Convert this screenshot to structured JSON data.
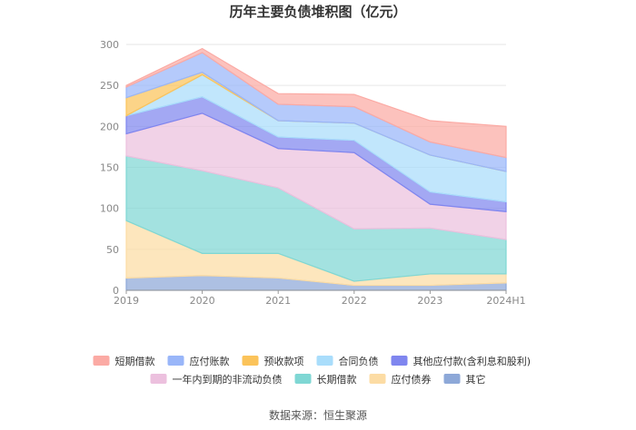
{
  "chart_data": {
    "type": "area",
    "stacked": true,
    "title": "历年主要负债堆积图（亿元）",
    "categories": [
      "2019",
      "2020",
      "2021",
      "2022",
      "2023",
      "2024H1"
    ],
    "ylim": [
      0,
      300
    ],
    "yticks": [
      0,
      50,
      100,
      150,
      200,
      250,
      300
    ],
    "grid": true,
    "legend_position": "bottom",
    "source": "数据来源：恒生聚源",
    "series": [
      {
        "name": "其它",
        "color": "#8da8d8",
        "values": [
          15,
          18,
          15,
          6,
          6,
          9
        ]
      },
      {
        "name": "应付债券",
        "color": "#fcdca4",
        "values": [
          70,
          27,
          30,
          5,
          14,
          11
        ]
      },
      {
        "name": "长期借款",
        "color": "#7fd7d4",
        "values": [
          79,
          101,
          80,
          64,
          56,
          42
        ]
      },
      {
        "name": "一年内到期的非流动负债",
        "color": "#ecc0de",
        "values": [
          27,
          70,
          48,
          93,
          29,
          34
        ]
      },
      {
        "name": "其他应付款(含利息和股利)",
        "color": "#7f86ef",
        "values": [
          22,
          20,
          14,
          15,
          15,
          12
        ]
      },
      {
        "name": "合同负债",
        "color": "#a9ddfb",
        "values": [
          0,
          27,
          20,
          21,
          45,
          37
        ]
      },
      {
        "name": "预收款项",
        "color": "#fbc35a",
        "values": [
          22,
          3,
          0,
          0,
          0,
          0
        ]
      },
      {
        "name": "应付账款",
        "color": "#99b6f9",
        "values": [
          13,
          24,
          20,
          20,
          16,
          17
        ]
      },
      {
        "name": "短期借款",
        "color": "#fbaaa4",
        "values": [
          2,
          5,
          13,
          15,
          26,
          38
        ]
      }
    ]
  }
}
